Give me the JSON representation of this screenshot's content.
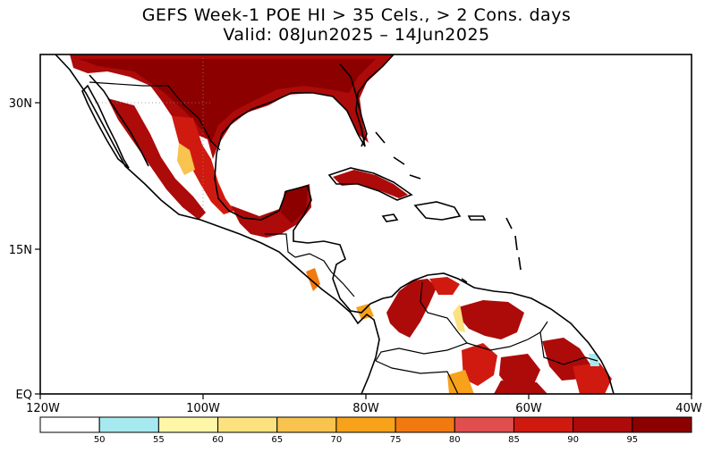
{
  "title": {
    "line1": "GEFS Week-1 POE HI > 35 Cels., > 2 Cons. days",
    "line2": "Valid: 08Jun2025 – 14Jun2025"
  },
  "axes": {
    "y_ticks": [
      "30N",
      "15N",
      "EQ"
    ],
    "x_ticks": [
      "120W",
      "100W",
      "80W",
      "60W",
      "40W"
    ]
  },
  "colorbar": {
    "labels": [
      "50",
      "55",
      "60",
      "65",
      "70",
      "75",
      "80",
      "85",
      "90",
      "95"
    ],
    "colors": [
      "#ffffff",
      "#a6eaf0",
      "#fff6a8",
      "#fce27e",
      "#f8c34e",
      "#f7a21a",
      "#f07a10",
      "#e04e4e",
      "#d01a10",
      "#ad0a0a",
      "#8c0000"
    ]
  },
  "map_layers": {
    "land_outline_color": "#000000",
    "shading": "probability of exceedance (%)"
  }
}
